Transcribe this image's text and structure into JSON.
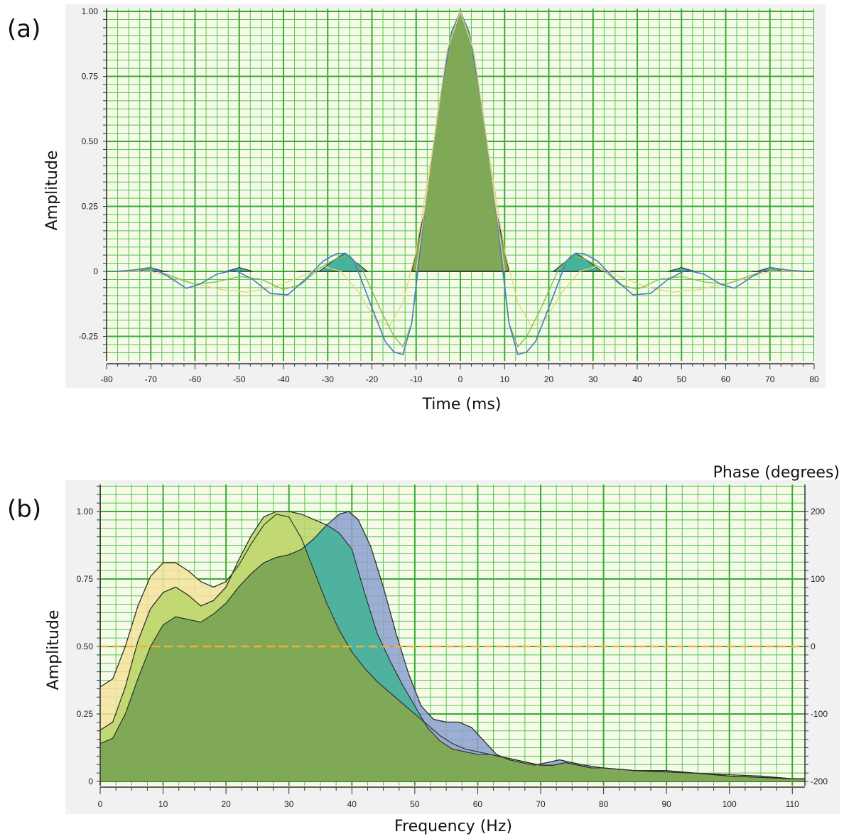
{
  "panels": {
    "a": {
      "label": "(a)"
    },
    "b": {
      "label": "(b)"
    }
  },
  "colors": {
    "panel_bg": "#f1f1f1",
    "grid_major": "#3aaa35",
    "grid_minor": "#59c34f",
    "dark_line": "#2b2b2b",
    "blue_line": "#4a78c8",
    "green_line": "#7fb84a",
    "yellow_line": "#e8d27a",
    "fill_olive": "#7fa857",
    "fill_yellow": "#f3e39e",
    "fill_lime": "#b9d66a",
    "fill_teal": "#47b39b",
    "fill_blue": "#8da0cf",
    "phase_line": "#f2b12f"
  },
  "chart_data": [
    {
      "type": "line",
      "panel": "a",
      "xlabel": "Time (ms)",
      "ylabel": "Amplitude",
      "xlim": [
        -80,
        80
      ],
      "ylim": [
        -0.31,
        1.0
      ],
      "x_ticks": [
        -80,
        -70,
        -60,
        -50,
        -40,
        -30,
        -20,
        -10,
        0,
        10,
        20,
        30,
        40,
        50,
        60,
        70,
        80
      ],
      "y_ticks": [
        {
          "value": -0.25,
          "label": "-0.25"
        },
        {
          "value": 0,
          "label": "0"
        },
        {
          "value": 0.25,
          "label": "0.25"
        },
        {
          "value": 0.5,
          "label": "0.50"
        },
        {
          "value": 0.75,
          "label": "0.75"
        },
        {
          "value": 1.0,
          "label": "1.00"
        }
      ],
      "grid": true,
      "series": [
        {
          "style": "blue",
          "x": [
            -78,
            -74,
            -70,
            -66,
            -62,
            -59,
            -55,
            -51,
            -47,
            -43,
            -39,
            -35,
            -31,
            -28,
            -26,
            -24,
            -20,
            -17,
            -15,
            -13,
            -11,
            -8,
            -5,
            -2,
            0,
            2,
            5,
            8,
            11,
            13,
            15,
            17,
            20,
            24,
            26,
            28,
            31,
            35,
            39,
            43,
            47,
            51,
            55,
            59,
            62,
            66,
            70,
            74,
            78
          ],
          "y": [
            0,
            0.005,
            0.015,
            -0.02,
            -0.065,
            -0.05,
            -0.01,
            0.005,
            -0.03,
            -0.085,
            -0.09,
            -0.03,
            0.04,
            0.068,
            0.07,
            0.04,
            -0.14,
            -0.27,
            -0.31,
            -0.32,
            -0.2,
            0.24,
            0.62,
            0.92,
            1.0,
            0.92,
            0.62,
            0.24,
            -0.2,
            -0.32,
            -0.31,
            -0.27,
            -0.14,
            0.04,
            0.07,
            0.068,
            0.04,
            -0.03,
            -0.09,
            -0.085,
            -0.03,
            0.005,
            -0.01,
            -0.05,
            -0.065,
            -0.02,
            0.015,
            0.005,
            0
          ]
        },
        {
          "style": "green",
          "x": [
            -78,
            -70,
            -65,
            -60,
            -55,
            -50,
            -45,
            -40,
            -36,
            -32,
            -28,
            -25,
            -22,
            -18,
            -15,
            -13,
            -11,
            -8,
            -5,
            -2,
            0,
            2,
            5,
            8,
            11,
            13,
            15,
            18,
            22,
            25,
            28,
            32,
            36,
            40,
            45,
            50,
            55,
            60,
            65,
            70,
            78
          ],
          "y": [
            0,
            0.01,
            -0.02,
            -0.05,
            -0.04,
            -0.02,
            -0.03,
            -0.07,
            -0.05,
            0.01,
            0.05,
            0.06,
            0.0,
            -0.15,
            -0.25,
            -0.29,
            -0.2,
            0.22,
            0.6,
            0.9,
            1.0,
            0.9,
            0.6,
            0.22,
            -0.2,
            -0.29,
            -0.25,
            -0.15,
            0.0,
            0.06,
            0.05,
            0.01,
            -0.05,
            -0.07,
            -0.03,
            -0.02,
            -0.04,
            -0.05,
            -0.02,
            0.01,
            0
          ]
        },
        {
          "style": "yellow",
          "x": [
            -78,
            -70,
            -62,
            -54,
            -48,
            -42,
            -36,
            -31,
            -27,
            -23,
            -19,
            -16,
            -13,
            -10,
            -6,
            -3,
            0,
            3,
            6,
            10,
            13,
            16,
            19,
            23,
            27,
            31,
            36,
            42,
            48,
            54,
            62,
            70,
            78
          ],
          "y": [
            0,
            0.0,
            -0.04,
            -0.07,
            -0.08,
            -0.06,
            -0.02,
            0.02,
            0.0,
            -0.08,
            -0.19,
            -0.21,
            -0.12,
            0.08,
            0.5,
            0.85,
            1.0,
            0.85,
            0.5,
            0.08,
            -0.12,
            -0.21,
            -0.19,
            -0.08,
            0.0,
            0.02,
            -0.02,
            -0.06,
            -0.08,
            -0.07,
            -0.04,
            0.0,
            0
          ]
        }
      ]
    },
    {
      "type": "area",
      "panel": "b",
      "xlabel": "Frequency (Hz)",
      "ylabel": "Amplitude",
      "y2label": "Phase (degrees)",
      "xlim": [
        0,
        112
      ],
      "ylim": [
        0,
        1.1
      ],
      "y2lim": [
        -200,
        200
      ],
      "x_ticks": [
        0,
        10,
        20,
        30,
        40,
        50,
        60,
        70,
        80,
        90,
        100,
        110
      ],
      "y_ticks": [
        {
          "value": 0,
          "label": "0"
        },
        {
          "value": 0.25,
          "label": "0.25"
        },
        {
          "value": 0.5,
          "label": "0.50"
        },
        {
          "value": 0.75,
          "label": "0.75"
        },
        {
          "value": 1.0,
          "label": "1.00"
        }
      ],
      "y2_ticks": [
        {
          "value": -200,
          "label": "-200"
        },
        {
          "value": -100,
          "label": "-100"
        },
        {
          "value": 0,
          "label": "0"
        },
        {
          "value": 100,
          "label": "100"
        },
        {
          "value": 200,
          "label": "200"
        }
      ],
      "grid": true,
      "series": [
        {
          "style": "yellow",
          "x": [
            0,
            2,
            4,
            6,
            8,
            10,
            12,
            14,
            16,
            18,
            20,
            22,
            24,
            26,
            28,
            30,
            32,
            34,
            36,
            38,
            40,
            42,
            44,
            46,
            48,
            50,
            52,
            54,
            56,
            58,
            60,
            62,
            64,
            66,
            68,
            70,
            72,
            74,
            76,
            78,
            80,
            85,
            90,
            95,
            100,
            105,
            110,
            112
          ],
          "y": [
            0.35,
            0.38,
            0.5,
            0.65,
            0.76,
            0.81,
            0.81,
            0.78,
            0.74,
            0.72,
            0.74,
            0.8,
            0.88,
            0.95,
            0.99,
            0.98,
            0.9,
            0.78,
            0.66,
            0.56,
            0.48,
            0.42,
            0.37,
            0.33,
            0.29,
            0.25,
            0.21,
            0.17,
            0.14,
            0.12,
            0.11,
            0.1,
            0.09,
            0.08,
            0.07,
            0.06,
            0.06,
            0.07,
            0.06,
            0.05,
            0.05,
            0.04,
            0.04,
            0.03,
            0.02,
            0.015,
            0.01,
            0.01
          ]
        },
        {
          "style": "lime",
          "x": [
            0,
            2,
            4,
            6,
            8,
            10,
            12,
            14,
            16,
            18,
            20,
            22,
            24,
            26,
            28,
            30,
            32,
            34,
            36,
            38,
            40,
            42,
            44,
            46,
            48,
            50,
            52,
            54,
            56,
            58,
            60,
            62,
            64,
            66,
            68,
            70,
            72,
            74,
            76,
            78,
            80,
            85,
            90,
            95,
            100,
            105,
            110,
            112
          ],
          "y": [
            0.19,
            0.22,
            0.35,
            0.52,
            0.64,
            0.7,
            0.72,
            0.69,
            0.65,
            0.67,
            0.72,
            0.82,
            0.91,
            0.98,
            1.0,
            1.0,
            0.99,
            0.97,
            0.95,
            0.92,
            0.86,
            0.7,
            0.55,
            0.45,
            0.36,
            0.28,
            0.2,
            0.15,
            0.12,
            0.11,
            0.1,
            0.1,
            0.09,
            0.08,
            0.07,
            0.06,
            0.06,
            0.07,
            0.06,
            0.05,
            0.05,
            0.04,
            0.04,
            0.03,
            0.025,
            0.02,
            0.01,
            0.01
          ]
        },
        {
          "style": "blue",
          "x": [
            0,
            2,
            4,
            6,
            8,
            10,
            12,
            14,
            16,
            18,
            20,
            22,
            24,
            26,
            28,
            30,
            32,
            34,
            36,
            38,
            39.5,
            41,
            43,
            45,
            47,
            49,
            51,
            53,
            55,
            57,
            59,
            61,
            63,
            65,
            67,
            69,
            71,
            73,
            75,
            77,
            80,
            85,
            90,
            95,
            100,
            105,
            110,
            112
          ],
          "y": [
            0.14,
            0.16,
            0.25,
            0.38,
            0.5,
            0.58,
            0.61,
            0.6,
            0.59,
            0.62,
            0.66,
            0.72,
            0.77,
            0.81,
            0.83,
            0.84,
            0.86,
            0.9,
            0.95,
            0.99,
            1.0,
            0.97,
            0.87,
            0.72,
            0.55,
            0.4,
            0.28,
            0.23,
            0.22,
            0.22,
            0.2,
            0.15,
            0.1,
            0.08,
            0.07,
            0.06,
            0.07,
            0.08,
            0.07,
            0.06,
            0.05,
            0.04,
            0.035,
            0.03,
            0.02,
            0.015,
            0.01,
            0.01
          ]
        },
        {
          "style": "phase",
          "x": [
            0,
            112
          ],
          "y": [
            0,
            0
          ]
        }
      ]
    }
  ]
}
